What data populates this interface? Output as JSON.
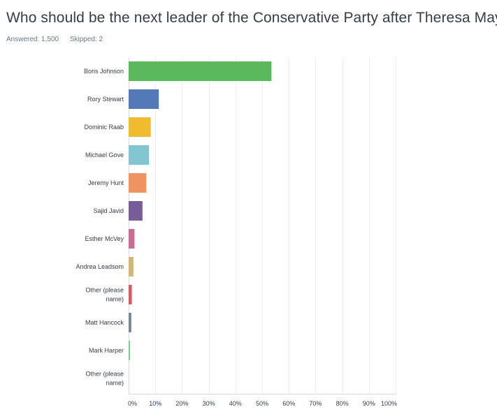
{
  "survey": {
    "question": "Who should be the next leader of the Conservative Party after Theresa May?",
    "answered_label": "Answered: 1,500",
    "skipped_label": "Skipped: 2"
  },
  "colors": {
    "bars": [
      "#5cb85c",
      "#5479b7",
      "#f0bc2f",
      "#82c6cf",
      "#f09362",
      "#785e98",
      "#c76d94",
      "#cfb87a",
      "#cf5d63",
      "#768593",
      "#78c78c",
      "#5b9bd5"
    ],
    "grid": "#eeeeee",
    "text": "#333e48"
  },
  "chart_data": {
    "type": "bar",
    "orientation": "horizontal",
    "categories": [
      "Boris Johnson",
      "Rory Stewart",
      "Dominic Raab",
      "Michael Gove",
      "Jeremy Hunt",
      "Sajid Javid",
      "Esther McVey",
      "Andrea Leadsom",
      "Other (please name)",
      "Matt Hancock",
      "Mark Harper",
      "Other (please name)"
    ],
    "values": [
      53.5,
      11.3,
      8.3,
      7.6,
      6.6,
      5.2,
      2.2,
      1.8,
      1.2,
      1.0,
      0.5,
      0.0
    ],
    "xlim": [
      0,
      100
    ],
    "xticks": [
      "0%",
      "10%",
      "20%",
      "30%",
      "40%",
      "50%",
      "60%",
      "70%",
      "80%",
      "90%",
      "100%"
    ],
    "grid": "vertical",
    "xlabel": "",
    "ylabel": ""
  }
}
